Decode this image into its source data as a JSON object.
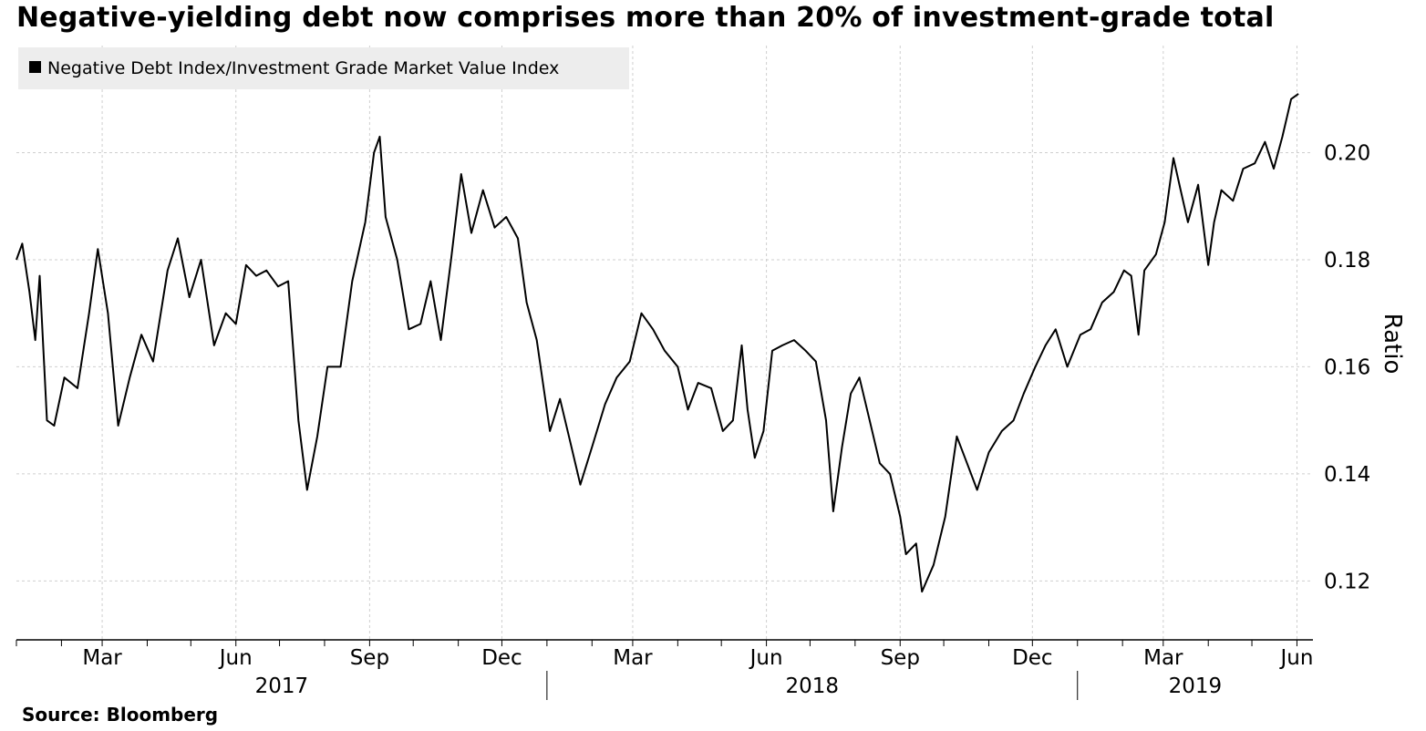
{
  "title": "Negative-yielding debt now comprises more than 20% of investment-grade total",
  "source": "Source: Bloomberg",
  "chart_data": {
    "type": "line",
    "title": "Negative-yielding debt now comprises more than 20% of investment-grade total",
    "ylabel": "Ratio",
    "xlabel": "",
    "ylim": [
      0.109,
      0.22
    ],
    "y_ticks": [
      "0.20",
      "0.18",
      "0.16",
      "0.14",
      "0.12"
    ],
    "x_month_ticks": [
      "Mar",
      "Jun",
      "Sep",
      "Dec",
      "Mar",
      "Jun",
      "Sep",
      "Dec",
      "Mar",
      "Jun"
    ],
    "x_year_labels": [
      "2017",
      "2018",
      "2019"
    ],
    "xlim": [
      "2017-01-01",
      "2019-06-12"
    ],
    "grid": true,
    "legend_position": "top-left",
    "series": [
      {
        "name": "Negative Debt Index/Investment Grade Market Value Index",
        "color": "#000000",
        "points": [
          [
            "2017-01-01",
            0.18
          ],
          [
            "2017-01-05",
            0.183
          ],
          [
            "2017-01-10",
            0.174
          ],
          [
            "2017-01-14",
            0.165
          ],
          [
            "2017-01-17",
            0.177
          ],
          [
            "2017-01-22",
            0.15
          ],
          [
            "2017-01-27",
            0.149
          ],
          [
            "2017-02-03",
            0.158
          ],
          [
            "2017-02-12",
            0.156
          ],
          [
            "2017-02-20",
            0.17
          ],
          [
            "2017-02-26",
            0.182
          ],
          [
            "2017-03-05",
            0.17
          ],
          [
            "2017-03-12",
            0.149
          ],
          [
            "2017-03-20",
            0.158
          ],
          [
            "2017-03-28",
            0.166
          ],
          [
            "2017-04-05",
            0.161
          ],
          [
            "2017-04-15",
            0.178
          ],
          [
            "2017-04-22",
            0.184
          ],
          [
            "2017-04-30",
            0.173
          ],
          [
            "2017-05-08",
            0.18
          ],
          [
            "2017-05-17",
            0.164
          ],
          [
            "2017-05-25",
            0.17
          ],
          [
            "2017-06-01",
            0.168
          ],
          [
            "2017-06-08",
            0.179
          ],
          [
            "2017-06-15",
            0.177
          ],
          [
            "2017-06-22",
            0.178
          ],
          [
            "2017-06-30",
            0.175
          ],
          [
            "2017-07-07",
            0.176
          ],
          [
            "2017-07-14",
            0.15
          ],
          [
            "2017-07-20",
            0.137
          ],
          [
            "2017-07-27",
            0.147
          ],
          [
            "2017-08-03",
            0.16
          ],
          [
            "2017-08-12",
            0.16
          ],
          [
            "2017-08-20",
            0.176
          ],
          [
            "2017-08-29",
            0.187
          ],
          [
            "2017-09-04",
            0.2
          ],
          [
            "2017-09-08",
            0.203
          ],
          [
            "2017-09-12",
            0.188
          ],
          [
            "2017-09-20",
            0.18
          ],
          [
            "2017-09-28",
            0.167
          ],
          [
            "2017-10-06",
            0.168
          ],
          [
            "2017-10-13",
            0.176
          ],
          [
            "2017-10-20",
            0.165
          ],
          [
            "2017-10-27",
            0.18
          ],
          [
            "2017-11-03",
            0.196
          ],
          [
            "2017-11-10",
            0.185
          ],
          [
            "2017-11-18",
            0.193
          ],
          [
            "2017-11-26",
            0.186
          ],
          [
            "2017-12-04",
            0.188
          ],
          [
            "2017-12-12",
            0.184
          ],
          [
            "2017-12-18",
            0.172
          ],
          [
            "2017-12-25",
            0.165
          ],
          [
            "2018-01-03",
            0.148
          ],
          [
            "2018-01-10",
            0.154
          ],
          [
            "2018-01-17",
            0.146
          ],
          [
            "2018-01-24",
            0.138
          ],
          [
            "2018-02-01",
            0.145
          ],
          [
            "2018-02-10",
            0.153
          ],
          [
            "2018-02-18",
            0.158
          ],
          [
            "2018-02-27",
            0.161
          ],
          [
            "2018-03-07",
            0.17
          ],
          [
            "2018-03-15",
            0.167
          ],
          [
            "2018-03-23",
            0.163
          ],
          [
            "2018-04-01",
            0.16
          ],
          [
            "2018-04-08",
            0.152
          ],
          [
            "2018-04-15",
            0.157
          ],
          [
            "2018-04-24",
            0.156
          ],
          [
            "2018-05-02",
            0.148
          ],
          [
            "2018-05-09",
            0.15
          ],
          [
            "2018-05-15",
            0.164
          ],
          [
            "2018-05-19",
            0.152
          ],
          [
            "2018-05-24",
            0.143
          ],
          [
            "2018-05-30",
            0.148
          ],
          [
            "2018-06-05",
            0.163
          ],
          [
            "2018-06-12",
            0.164
          ],
          [
            "2018-06-20",
            0.165
          ],
          [
            "2018-06-28",
            0.163
          ],
          [
            "2018-07-05",
            0.161
          ],
          [
            "2018-07-12",
            0.15
          ],
          [
            "2018-07-17",
            0.133
          ],
          [
            "2018-07-23",
            0.145
          ],
          [
            "2018-07-29",
            0.155
          ],
          [
            "2018-08-04",
            0.158
          ],
          [
            "2018-08-11",
            0.15
          ],
          [
            "2018-08-18",
            0.142
          ],
          [
            "2018-08-25",
            0.14
          ],
          [
            "2018-09-01",
            0.132
          ],
          [
            "2018-09-05",
            0.125
          ],
          [
            "2018-09-12",
            0.127
          ],
          [
            "2018-09-16",
            0.118
          ],
          [
            "2018-09-24",
            0.123
          ],
          [
            "2018-10-02",
            0.132
          ],
          [
            "2018-10-10",
            0.147
          ],
          [
            "2018-10-17",
            0.142
          ],
          [
            "2018-10-24",
            0.137
          ],
          [
            "2018-11-01",
            0.144
          ],
          [
            "2018-11-10",
            0.148
          ],
          [
            "2018-11-18",
            0.15
          ],
          [
            "2018-11-25",
            0.155
          ],
          [
            "2018-12-03",
            0.16
          ],
          [
            "2018-12-10",
            0.164
          ],
          [
            "2018-12-17",
            0.167
          ],
          [
            "2018-12-25",
            0.16
          ],
          [
            "2019-01-03",
            0.166
          ],
          [
            "2019-01-10",
            0.167
          ],
          [
            "2019-01-18",
            0.172
          ],
          [
            "2019-01-26",
            0.174
          ],
          [
            "2019-02-02",
            0.178
          ],
          [
            "2019-02-07",
            0.177
          ],
          [
            "2019-02-12",
            0.166
          ],
          [
            "2019-02-16",
            0.178
          ],
          [
            "2019-02-24",
            0.181
          ],
          [
            "2019-03-02",
            0.187
          ],
          [
            "2019-03-08",
            0.199
          ],
          [
            "2019-03-13",
            0.193
          ],
          [
            "2019-03-18",
            0.187
          ],
          [
            "2019-03-25",
            0.194
          ],
          [
            "2019-04-01",
            0.179
          ],
          [
            "2019-04-05",
            0.187
          ],
          [
            "2019-04-10",
            0.193
          ],
          [
            "2019-04-18",
            0.191
          ],
          [
            "2019-04-25",
            0.197
          ],
          [
            "2019-05-03",
            0.198
          ],
          [
            "2019-05-10",
            0.202
          ],
          [
            "2019-05-16",
            0.197
          ],
          [
            "2019-05-22",
            0.203
          ],
          [
            "2019-05-28",
            0.21
          ],
          [
            "2019-06-02",
            0.211
          ]
        ]
      }
    ]
  }
}
